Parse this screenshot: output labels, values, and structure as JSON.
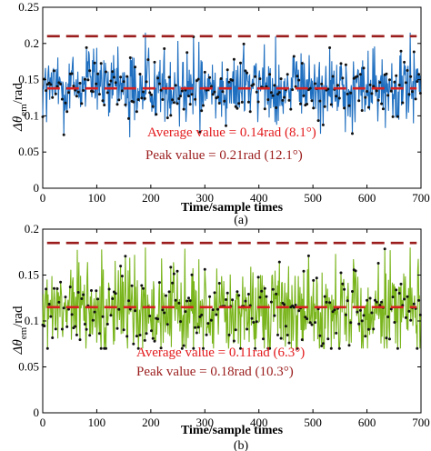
{
  "chart_data": [
    {
      "type": "line",
      "panel_label": "(a)",
      "xlabel": "Time/sample times",
      "ylabel_main": "Δθ",
      "ylabel_sub": "em",
      "ylabel_unit": "/rad",
      "xlim": [
        0,
        700
      ],
      "ylim": [
        0,
        0.25
      ],
      "xticks": [
        0,
        100,
        200,
        300,
        400,
        500,
        600,
        700
      ],
      "yticks": [
        0,
        0.05,
        0.1,
        0.15,
        0.2,
        0.25
      ],
      "xtick_labels": [
        "0",
        "100",
        "200",
        "300",
        "400",
        "500",
        "600",
        "700"
      ],
      "ytick_labels": [
        "0",
        "0.05",
        "0.1",
        "0.15",
        "0.2",
        "0.25"
      ],
      "grid": false,
      "series": [
        {
          "color": "#1f6fc0",
          "style": "solid-with-black-dots",
          "mean": 0.14,
          "min": 0.07,
          "max": 0.215,
          "samples": 700
        },
        {
          "color": "#d62020",
          "style": "dashed",
          "values": [
            0.138,
            0.138
          ]
        },
        {
          "color": "#9b1c1c",
          "style": "dashed",
          "values": [
            0.21,
            0.21
          ]
        }
      ],
      "annotations": [
        {
          "text": "Average value = 0.14rad (8.1°)",
          "color": "#e31a1c"
        },
        {
          "text": "Peak value = 0.21rad (12.1°)",
          "color": "#9b1c1c"
        }
      ]
    },
    {
      "type": "line",
      "panel_label": "(b)",
      "xlabel": "Time/sample times",
      "ylabel_main": "Δθ",
      "ylabel_sub": "em",
      "ylabel_unit": "/rad",
      "xlim": [
        0,
        700
      ],
      "ylim": [
        0,
        0.2
      ],
      "xticks": [
        0,
        100,
        200,
        300,
        400,
        500,
        600,
        700
      ],
      "yticks": [
        0,
        0.05,
        0.1,
        0.15,
        0.2
      ],
      "xtick_labels": [
        "0",
        "100",
        "200",
        "300",
        "400",
        "500",
        "600",
        "700"
      ],
      "ytick_labels": [
        "0",
        "0.05",
        "0.1",
        "0.15",
        "0.2"
      ],
      "grid": false,
      "series": [
        {
          "color": "#7ab51d",
          "style": "solid-with-black-dots",
          "mean": 0.11,
          "min": 0.07,
          "max": 0.18,
          "samples": 700
        },
        {
          "color": "#d62020",
          "style": "dashed",
          "values": [
            0.115,
            0.115
          ]
        },
        {
          "color": "#9b1c1c",
          "style": "dashed",
          "values": [
            0.185,
            0.185
          ]
        }
      ],
      "annotations": [
        {
          "text": "Average value = 0.11rad (6.3°)",
          "color": "#e31a1c"
        },
        {
          "text": "Peak value = 0.18rad (10.3°)",
          "color": "#9b1c1c"
        }
      ]
    }
  ]
}
